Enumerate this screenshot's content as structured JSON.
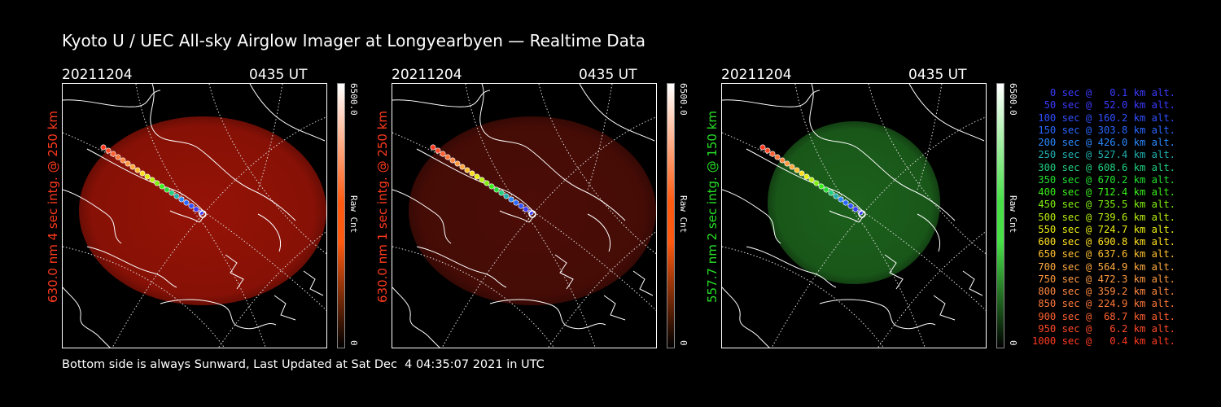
{
  "header": {
    "title": "Kyoto U / UEC All-sky Airglow Imager at Longyearbyen — Realtime Data"
  },
  "panels": [
    {
      "date": "20211204",
      "time": "0435 UT",
      "ylabel": "630.0 nm 4 sec intg. @ 250 km",
      "color": "#ff3a1e",
      "glow": "#b01608",
      "glow_opacity": 0.85,
      "cbar_max": "6500.0",
      "cbar_unit": "Raw Cnt",
      "cbar_min": "0",
      "cbar_color": "#ff5a10"
    },
    {
      "date": "20211204",
      "time": "0435 UT",
      "ylabel": "630.0 nm 1 sec intg. @ 250 km",
      "color": "#ff3a1e",
      "glow": "#5a0f08",
      "glow_opacity": 0.85,
      "cbar_max": "6500.0",
      "cbar_unit": "Raw Cnt",
      "cbar_min": "0",
      "cbar_color": "#ff5a10"
    },
    {
      "date": "20211204",
      "time": "0435 UT",
      "ylabel": "557.7 nm 2 sec intg. @ 150 km",
      "color": "#27e027",
      "glow": "#1f6b1f",
      "glow_opacity": 0.9,
      "cbar_max": "6500.0",
      "cbar_unit": "Raw Cnt",
      "cbar_min": "0",
      "cbar_color": "#46e046"
    }
  ],
  "legend": [
    {
      "text": "0 sec @   0.1 km alt.",
      "color": "#3a3aff"
    },
    {
      "text": "50 sec @  52.0 km alt.",
      "color": "#3a3aff"
    },
    {
      "text": "100 sec @ 160.2 km alt.",
      "color": "#2f4fff"
    },
    {
      "text": "150 sec @ 303.8 km alt.",
      "color": "#2a68ff"
    },
    {
      "text": "200 sec @ 426.0 km alt.",
      "color": "#2a88ff"
    },
    {
      "text": "250 sec @ 527.4 km alt.",
      "color": "#22b0b0"
    },
    {
      "text": "300 sec @ 608.6 km alt.",
      "color": "#20d080"
    },
    {
      "text": "350 sec @ 670.2 km alt.",
      "color": "#22e030"
    },
    {
      "text": "400 sec @ 712.4 km alt.",
      "color": "#3af01a"
    },
    {
      "text": "450 sec @ 735.5 km alt.",
      "color": "#80f010"
    },
    {
      "text": "500 sec @ 739.6 km alt.",
      "color": "#b8f010"
    },
    {
      "text": "550 sec @ 724.7 km alt.",
      "color": "#e8ee10"
    },
    {
      "text": "600 sec @ 690.8 km alt.",
      "color": "#ffe020"
    },
    {
      "text": "650 sec @ 637.6 km alt.",
      "color": "#ffc030"
    },
    {
      "text": "700 sec @ 564.9 km alt.",
      "color": "#ffaa40"
    },
    {
      "text": "750 sec @ 472.3 km alt.",
      "color": "#ff9a40"
    },
    {
      "text": "800 sec @ 359.2 km alt.",
      "color": "#ff8840"
    },
    {
      "text": "850 sec @ 224.9 km alt.",
      "color": "#ff7838"
    },
    {
      "text": "900 sec @  68.7 km alt.",
      "color": "#ff6030"
    },
    {
      "text": "950 sec @   6.2 km alt.",
      "color": "#ff4a28"
    },
    {
      "text": "1000 sec @   0.4 km alt.",
      "color": "#ff3a20"
    }
  ],
  "footer": {
    "text": "Bottom side is always Sunward, Last Updated at Sat Dec  4 04:35:07 2021 in UTC"
  }
}
